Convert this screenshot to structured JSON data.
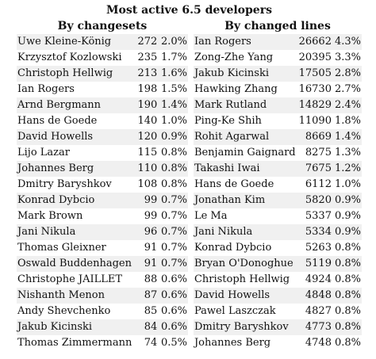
{
  "title": "Most active 6.5 developers",
  "changesets": {
    "heading": "By changesets",
    "rows": [
      {
        "name": "Uwe Kleine-König",
        "count": "272",
        "pct": "2.0%"
      },
      {
        "name": "Krzysztof Kozlowski",
        "count": "235",
        "pct": "1.7%"
      },
      {
        "name": "Christoph Hellwig",
        "count": "213",
        "pct": "1.6%"
      },
      {
        "name": "Ian Rogers",
        "count": "198",
        "pct": "1.5%"
      },
      {
        "name": "Arnd Bergmann",
        "count": "190",
        "pct": "1.4%"
      },
      {
        "name": "Hans de Goede",
        "count": "140",
        "pct": "1.0%"
      },
      {
        "name": "David Howells",
        "count": "120",
        "pct": "0.9%"
      },
      {
        "name": "Lijo Lazar",
        "count": "115",
        "pct": "0.8%"
      },
      {
        "name": "Johannes Berg",
        "count": "110",
        "pct": "0.8%"
      },
      {
        "name": "Dmitry Baryshkov",
        "count": "108",
        "pct": "0.8%"
      },
      {
        "name": "Konrad Dybcio",
        "count": "99",
        "pct": "0.7%"
      },
      {
        "name": "Mark Brown",
        "count": "99",
        "pct": "0.7%"
      },
      {
        "name": "Jani Nikula",
        "count": "96",
        "pct": "0.7%"
      },
      {
        "name": "Thomas Gleixner",
        "count": "91",
        "pct": "0.7%"
      },
      {
        "name": "Oswald Buddenhagen",
        "count": "91",
        "pct": "0.7%"
      },
      {
        "name": "Christophe JAILLET",
        "count": "88",
        "pct": "0.6%"
      },
      {
        "name": "Nishanth Menon",
        "count": "87",
        "pct": "0.6%"
      },
      {
        "name": "Andy Shevchenko",
        "count": "85",
        "pct": "0.6%"
      },
      {
        "name": "Jakub Kicinski",
        "count": "84",
        "pct": "0.6%"
      },
      {
        "name": "Thomas Zimmermann",
        "count": "74",
        "pct": "0.5%"
      }
    ]
  },
  "lines": {
    "heading": "By changed lines",
    "rows": [
      {
        "name": "Ian Rogers",
        "count": "26662",
        "pct": "4.3%"
      },
      {
        "name": "Zong-Zhe Yang",
        "count": "20395",
        "pct": "3.3%"
      },
      {
        "name": "Jakub Kicinski",
        "count": "17505",
        "pct": "2.8%"
      },
      {
        "name": "Hawking Zhang",
        "count": "16730",
        "pct": "2.7%"
      },
      {
        "name": "Mark Rutland",
        "count": "14829",
        "pct": "2.4%"
      },
      {
        "name": "Ping-Ke Shih",
        "count": "11090",
        "pct": "1.8%"
      },
      {
        "name": "Rohit Agarwal",
        "count": "8669",
        "pct": "1.4%"
      },
      {
        "name": "Benjamin Gaignard",
        "count": "8275",
        "pct": "1.3%"
      },
      {
        "name": "Takashi Iwai",
        "count": "7675",
        "pct": "1.2%"
      },
      {
        "name": "Hans de Goede",
        "count": "6112",
        "pct": "1.0%"
      },
      {
        "name": "Jonathan Kim",
        "count": "5820",
        "pct": "0.9%"
      },
      {
        "name": "Le Ma",
        "count": "5337",
        "pct": "0.9%"
      },
      {
        "name": "Jani Nikula",
        "count": "5334",
        "pct": "0.9%"
      },
      {
        "name": "Konrad Dybcio",
        "count": "5263",
        "pct": "0.8%"
      },
      {
        "name": "Bryan O'Donoghue",
        "count": "5119",
        "pct": "0.8%"
      },
      {
        "name": "Christoph Hellwig",
        "count": "4924",
        "pct": "0.8%"
      },
      {
        "name": "David Howells",
        "count": "4848",
        "pct": "0.8%"
      },
      {
        "name": "Pawel Laszczak",
        "count": "4827",
        "pct": "0.8%"
      },
      {
        "name": "Dmitry Baryshkov",
        "count": "4773",
        "pct": "0.8%"
      },
      {
        "name": "Johannes Berg",
        "count": "4748",
        "pct": "0.8%"
      }
    ]
  }
}
